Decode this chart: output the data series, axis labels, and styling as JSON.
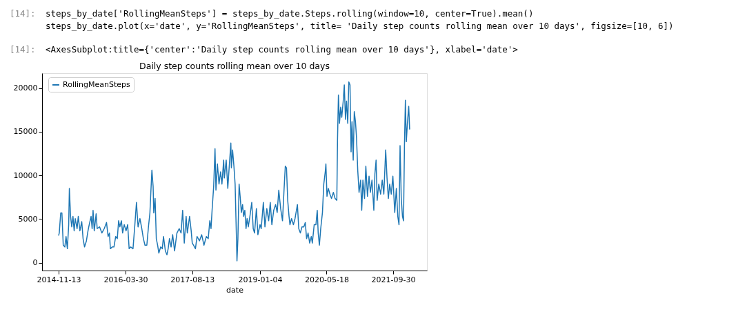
{
  "chart_data": {
    "type": "line",
    "title": "Daily step counts rolling mean over 10 days",
    "xlabel": "date",
    "annotations": [
      "[14]:",
      "steps_by_date['RollingMeanSteps'] = steps_by_date.Steps.rolling(window=10, center=True).mean()",
      "steps_by_date.plot(x='date', y='RollingMeanSteps', title= 'Daily step counts rolling mean over 10 days', figsize=[10, 6])",
      "[14]:",
      "<AxesSubplot:title={'center':'Daily step counts rolling mean over 10 days'}, xlabel='date'>"
    ],
    "xlim": [
      "2014-07-12",
      "2022-06-11"
    ],
    "xticks": [
      "2014-11-13",
      "2016-03-30",
      "2017-08-13",
      "2019-01-04",
      "2020-05-18",
      "2021-09-30"
    ],
    "ylim": [
      -900,
      21700
    ],
    "yticks": [
      0,
      5000,
      10000,
      15000,
      20000
    ],
    "grid": false,
    "legend": "top left",
    "marker": "none",
    "line_style": "solid",
    "series": [
      {
        "name": "RollingMeanSteps",
        "color": "#1f77b4",
        "x": [
          "2014-11-13",
          "2014-11-18",
          "2014-11-29",
          "2014-12-08",
          "2014-12-18",
          "2014-12-30",
          "2015-01-08",
          "2015-01-18",
          "2015-01-28",
          "2015-02-02",
          "2015-02-11",
          "2015-02-20",
          "2015-03-01",
          "2015-03-10",
          "2015-03-18",
          "2015-04-01",
          "2015-04-10",
          "2015-04-22",
          "2015-05-06",
          "2015-05-16",
          "2015-05-27",
          "2015-06-10",
          "2015-06-22",
          "2015-07-01",
          "2015-07-15",
          "2015-07-23",
          "2015-07-30",
          "2015-08-08",
          "2015-08-22",
          "2015-08-30",
          "2015-09-17",
          "2015-10-04",
          "2015-10-22",
          "2015-11-08",
          "2015-11-20",
          "2015-11-30",
          "2015-12-07",
          "2015-12-21",
          "2016-01-03",
          "2016-01-16",
          "2016-01-28",
          "2016-02-07",
          "2016-02-16",
          "2016-02-28",
          "2016-03-08",
          "2016-03-20",
          "2016-04-03",
          "2016-04-15",
          "2016-04-26",
          "2016-05-08",
          "2016-05-25",
          "2016-06-08",
          "2016-06-20",
          "2016-07-02",
          "2016-07-16",
          "2016-07-30",
          "2016-08-11",
          "2016-08-23",
          "2016-09-06",
          "2016-09-18",
          "2016-09-29",
          "2016-10-06",
          "2016-10-14",
          "2016-10-23",
          "2016-10-28",
          "2016-11-07",
          "2016-11-16",
          "2016-11-26",
          "2016-12-05",
          "2016-12-19",
          "2016-12-31",
          "2017-01-09",
          "2017-01-23",
          "2017-02-04",
          "2017-02-13",
          "2017-02-23",
          "2017-03-07",
          "2017-03-19",
          "2017-04-02",
          "2017-04-20",
          "2017-05-07",
          "2017-05-21",
          "2017-06-02",
          "2017-06-14",
          "2017-06-28",
          "2017-07-07",
          "2017-07-24",
          "2017-08-05",
          "2017-08-13",
          "2017-08-23",
          "2017-09-06",
          "2017-09-18",
          "2017-10-06",
          "2017-10-23",
          "2017-11-09",
          "2017-11-27",
          "2017-12-11",
          "2017-12-23",
          "2018-01-01",
          "2018-01-09",
          "2018-01-21",
          "2018-01-31",
          "2018-02-07",
          "2018-02-18",
          "2018-03-02",
          "2018-03-14",
          "2018-03-24",
          "2018-04-06",
          "2018-04-11",
          "2018-04-25",
          "2018-05-07",
          "2018-05-16",
          "2018-05-30",
          "2018-06-03",
          "2018-06-12",
          "2018-06-22",
          "2018-07-01",
          "2018-07-10",
          "2018-07-15",
          "2018-07-22",
          "2018-07-31",
          "2018-08-09",
          "2018-08-17",
          "2018-08-26",
          "2018-09-03",
          "2018-09-12",
          "2018-09-21",
          "2018-09-29",
          "2018-10-08",
          "2018-10-20",
          "2018-11-03",
          "2018-11-14",
          "2018-11-24",
          "2018-12-08",
          "2018-12-19",
          "2019-01-04",
          "2019-01-13",
          "2019-01-29",
          "2019-02-10",
          "2019-02-24",
          "2019-03-10",
          "2019-03-22",
          "2019-04-03",
          "2019-04-17",
          "2019-05-01",
          "2019-05-13",
          "2019-05-25",
          "2019-06-08",
          "2019-06-22",
          "2019-07-04",
          "2019-07-13",
          "2019-07-22",
          "2019-07-31",
          "2019-08-10",
          "2019-08-17",
          "2019-08-29",
          "2019-09-12",
          "2019-09-24",
          "2019-10-12",
          "2019-10-22",
          "2019-11-03",
          "2019-11-15",
          "2019-11-29",
          "2019-12-10",
          "2019-12-20",
          "2019-12-31",
          "2020-01-12",
          "2020-01-24",
          "2020-02-01",
          "2020-02-15",
          "2020-02-28",
          "2020-03-09",
          "2020-03-16",
          "2020-03-25",
          "2020-04-04",
          "2020-04-17",
          "2020-04-27",
          "2020-05-08",
          "2020-05-13",
          "2020-05-21",
          "2020-05-31",
          "2020-06-12",
          "2020-06-24",
          "2020-07-08",
          "2020-07-21",
          "2020-08-03",
          "2020-08-08",
          "2020-08-15",
          "2020-08-23",
          "2020-09-01",
          "2020-09-09",
          "2020-09-20",
          "2020-09-28",
          "2020-10-07",
          "2020-10-15",
          "2020-10-24",
          "2020-11-01",
          "2020-11-10",
          "2020-11-18",
          "2020-11-25",
          "2020-12-04",
          "2020-12-12",
          "2020-12-21",
          "2020-12-29",
          "2021-01-07",
          "2021-01-17",
          "2021-01-29",
          "2021-02-06",
          "2021-02-15",
          "2021-02-27",
          "2021-03-09",
          "2021-03-21",
          "2021-04-02",
          "2021-04-12",
          "2021-04-24",
          "2021-05-08",
          "2021-05-16",
          "2021-05-25",
          "2021-06-02",
          "2021-06-14",
          "2021-06-28",
          "2021-07-10",
          "2021-07-22",
          "2021-08-05",
          "2021-08-15",
          "2021-08-25",
          "2021-09-04",
          "2021-09-16",
          "2021-09-28",
          "2021-10-12",
          "2021-10-24",
          "2021-11-04",
          "2021-11-13",
          "2021-11-21",
          "2021-11-30",
          "2021-12-09",
          "2021-12-17",
          "2021-12-24",
          "2021-12-31",
          "2022-01-07",
          "2022-01-16",
          "2022-01-25",
          "2022-02-01"
        ],
        "values": [
          3100,
          3400,
          5700,
          5700,
          2000,
          1800,
          3000,
          1600,
          4350,
          8500,
          5300,
          4100,
          5300,
          3650,
          5050,
          3900,
          5300,
          3650,
          4700,
          2750,
          1800,
          2500,
          3650,
          4350,
          5300,
          3900,
          6000,
          3650,
          5600,
          3900,
          4100,
          3400,
          3900,
          4600,
          3000,
          3400,
          1600,
          1800,
          1800,
          3000,
          2750,
          4800,
          4100,
          4800,
          3400,
          4350,
          3650,
          4350,
          1600,
          1800,
          1600,
          4350,
          6900,
          4100,
          5050,
          3900,
          2750,
          2000,
          2000,
          4100,
          5700,
          8050,
          10600,
          8750,
          5700,
          7350,
          2750,
          2000,
          1100,
          1800,
          1600,
          3000,
          1350,
          900,
          1600,
          2750,
          1800,
          3200,
          1350,
          3400,
          3900,
          3400,
          6000,
          2250,
          5300,
          3400,
          5300,
          3650,
          2250,
          2000,
          1600,
          3000,
          2500,
          3200,
          2000,
          3000,
          2750,
          4800,
          3900,
          6000,
          8750,
          13050,
          8300,
          11300,
          9000,
          10400,
          9000,
          11750,
          9700,
          11750,
          8500,
          10600,
          13700,
          10850,
          12900,
          11050,
          9000,
          3400,
          200,
          2750,
          9000,
          7350,
          5750,
          6650,
          5300,
          6000,
          3900,
          5050,
          4100,
          5300,
          6900,
          3900,
          3400,
          6200,
          3200,
          4350,
          3900,
          6900,
          4100,
          6200,
          4800,
          6900,
          4350,
          6000,
          6650,
          5750,
          8300,
          6200,
          4800,
          8500,
          11050,
          10850,
          7150,
          5300,
          4350,
          5050,
          4350,
          5050,
          6650,
          3900,
          3400,
          4100,
          4100,
          4600,
          2750,
          3400,
          2250,
          3000,
          2250,
          4350,
          4350,
          6000,
          3400,
          2000,
          3900,
          5750,
          9000,
          10400,
          11300,
          7600,
          8500,
          7850,
          7350,
          8050,
          7350,
          7150,
          13850,
          19200,
          15950,
          17800,
          16650,
          18500,
          20350,
          16400,
          18500,
          15950,
          20700,
          20350,
          12700,
          16150,
          11750,
          17300,
          16150,
          14300,
          10600,
          8050,
          9450,
          6000,
          9450,
          7350,
          11050,
          7600,
          9900,
          8050,
          9450,
          6000,
          10150,
          11750,
          7150,
          9000,
          7850,
          9450,
          7850,
          12900,
          9700,
          7350,
          9000,
          7850,
          9900,
          5750,
          8500,
          5300,
          4350,
          13400,
          7350,
          5300,
          4800,
          13400,
          18600,
          13850,
          16150,
          17900,
          15250
        ]
      }
    ]
  }
}
